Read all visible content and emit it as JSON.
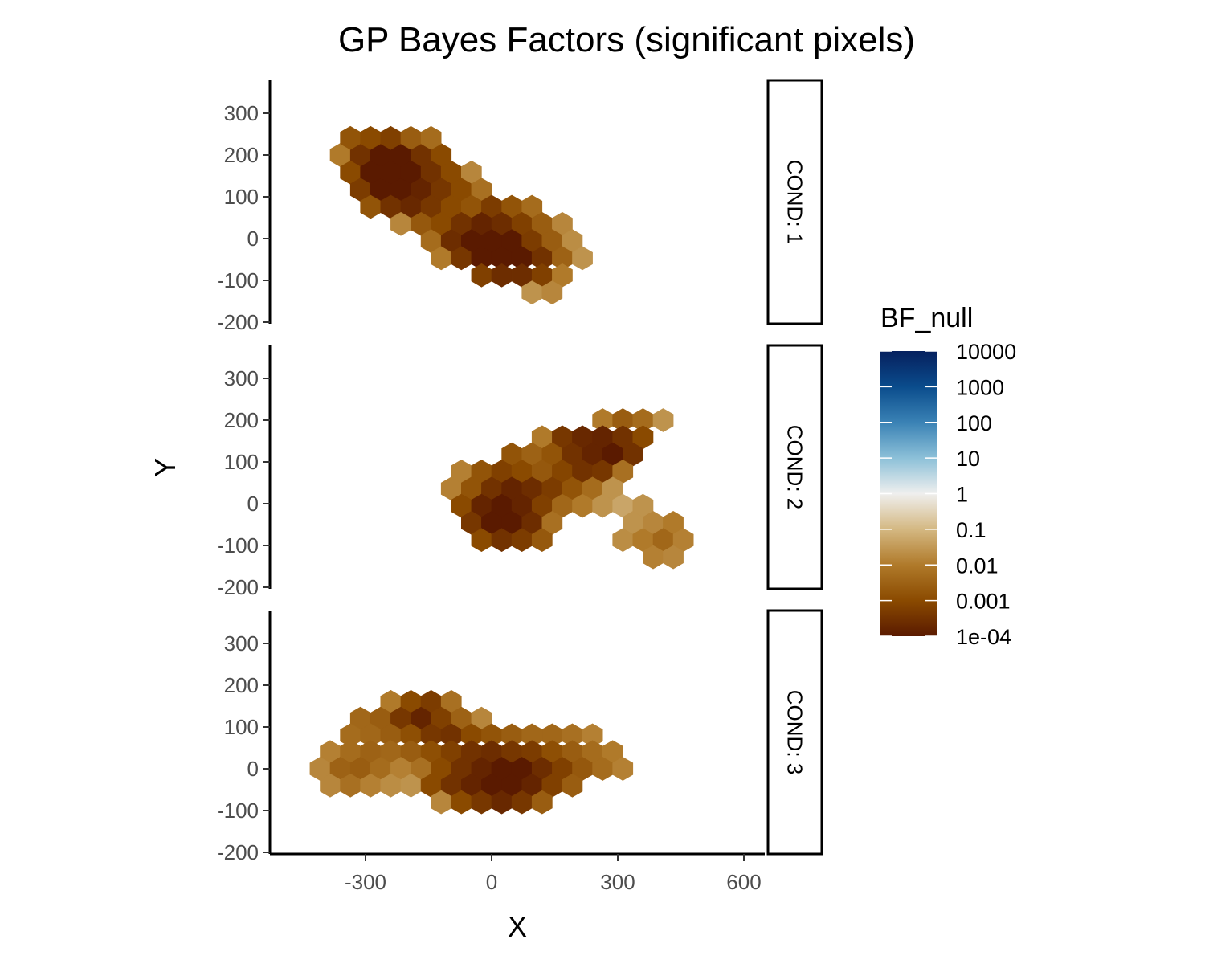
{
  "chart_data": {
    "type": "heatmap",
    "subtype": "hexbin, faceted by condition",
    "title": "GP Bayes Factors (significant pixels)",
    "xlabel": "X",
    "ylabel": "Y",
    "xlim": [
      -500,
      550
    ],
    "ylim": [
      -200,
      380
    ],
    "xticks": [
      -300,
      0,
      300,
      600
    ],
    "xtick_labels": [
      "-300",
      "0",
      "300",
      "600"
    ],
    "yticks": [
      -200,
      -100,
      0,
      100,
      200,
      300
    ],
    "ytick_labels": [
      "-200",
      "-100",
      "0",
      "100",
      "200",
      "300"
    ],
    "grid": false,
    "hex_spacing_x": 48,
    "legend": {
      "title": "BF_null",
      "position": "right",
      "scale": "log10",
      "breaks": [
        -4,
        -3,
        -2,
        -1,
        0,
        1,
        2,
        3,
        4
      ],
      "labels": [
        "1e-04",
        "0.001",
        "0.01",
        "0.1",
        "1",
        "10",
        "100",
        "1000",
        "10000"
      ],
      "colors": [
        "#5a1a00",
        "#8a4a00",
        "#b07a2a",
        "#d4b882",
        "#efefee",
        "#8cc0d8",
        "#3a82b5",
        "#0a4c8c",
        "#06205e"
      ]
    },
    "facets": [
      {
        "label": "COND: 1",
        "hexes": [
          [
            -360,
            200,
            -2.0
          ],
          [
            -312,
            200,
            -3.5
          ],
          [
            -264,
            200,
            -4.0
          ],
          [
            -216,
            200,
            -4.0
          ],
          [
            -168,
            200,
            -3.5
          ],
          [
            -120,
            200,
            -3.0
          ],
          [
            -336,
            241,
            -2.8
          ],
          [
            -288,
            241,
            -3.0
          ],
          [
            -240,
            241,
            -3.2
          ],
          [
            -192,
            241,
            -2.6
          ],
          [
            -144,
            241,
            -2.3
          ],
          [
            -336,
            158,
            -3.0
          ],
          [
            -288,
            158,
            -4.0
          ],
          [
            -240,
            158,
            -4.0
          ],
          [
            -192,
            158,
            -4.0
          ],
          [
            -144,
            158,
            -3.5
          ],
          [
            -96,
            158,
            -3.0
          ],
          [
            -48,
            158,
            -1.8
          ],
          [
            -312,
            117,
            -3.3
          ],
          [
            -264,
            117,
            -4.0
          ],
          [
            -216,
            117,
            -4.0
          ],
          [
            -168,
            117,
            -3.8
          ],
          [
            -120,
            117,
            -3.4
          ],
          [
            -72,
            117,
            -3.0
          ],
          [
            -24,
            117,
            -2.2
          ],
          [
            -288,
            76,
            -2.8
          ],
          [
            -240,
            76,
            -3.5
          ],
          [
            -192,
            76,
            -3.7
          ],
          [
            -144,
            76,
            -3.4
          ],
          [
            -96,
            76,
            -3.0
          ],
          [
            -48,
            76,
            -2.8
          ],
          [
            0,
            76,
            -3.3
          ],
          [
            48,
            76,
            -2.8
          ],
          [
            96,
            76,
            -2.3
          ],
          [
            -216,
            35,
            -1.8
          ],
          [
            -168,
            35,
            -2.7
          ],
          [
            -120,
            35,
            -3.0
          ],
          [
            -72,
            35,
            -3.5
          ],
          [
            -24,
            35,
            -3.8
          ],
          [
            24,
            35,
            -3.6
          ],
          [
            72,
            35,
            -3.2
          ],
          [
            120,
            35,
            -2.6
          ],
          [
            168,
            35,
            -1.8
          ],
          [
            -144,
            -6,
            -2.3
          ],
          [
            -96,
            -6,
            -3.6
          ],
          [
            -48,
            -6,
            -4.0
          ],
          [
            0,
            -6,
            -4.0
          ],
          [
            48,
            -6,
            -4.0
          ],
          [
            96,
            -6,
            -3.3
          ],
          [
            144,
            -6,
            -2.6
          ],
          [
            192,
            -6,
            -1.7
          ],
          [
            -120,
            -47,
            -2.0
          ],
          [
            -72,
            -47,
            -3.4
          ],
          [
            -24,
            -47,
            -4.0
          ],
          [
            24,
            -47,
            -4.0
          ],
          [
            72,
            -47,
            -4.0
          ],
          [
            120,
            -47,
            -3.5
          ],
          [
            168,
            -47,
            -2.5
          ],
          [
            216,
            -47,
            -1.6
          ],
          [
            -24,
            -88,
            -3.2
          ],
          [
            24,
            -88,
            -3.6
          ],
          [
            72,
            -88,
            -3.6
          ],
          [
            120,
            -88,
            -3.2
          ],
          [
            168,
            -88,
            -2.0
          ],
          [
            96,
            -129,
            -1.6
          ],
          [
            144,
            -129,
            -1.8
          ]
        ]
      },
      {
        "label": "COND: 2",
        "hexes": [
          [
            264,
            200,
            -2.0
          ],
          [
            312,
            200,
            -2.6
          ],
          [
            360,
            200,
            -2.3
          ],
          [
            408,
            200,
            -1.6
          ],
          [
            120,
            159,
            -2.0
          ],
          [
            168,
            159,
            -3.4
          ],
          [
            216,
            159,
            -3.7
          ],
          [
            264,
            159,
            -3.8
          ],
          [
            312,
            159,
            -3.5
          ],
          [
            360,
            159,
            -3.0
          ],
          [
            48,
            118,
            -2.8
          ],
          [
            96,
            118,
            -2.5
          ],
          [
            144,
            118,
            -2.8
          ],
          [
            192,
            118,
            -3.5
          ],
          [
            240,
            118,
            -3.8
          ],
          [
            288,
            118,
            -4.0
          ],
          [
            336,
            118,
            -3.5
          ],
          [
            -72,
            77,
            -1.9
          ],
          [
            -24,
            77,
            -2.8
          ],
          [
            24,
            77,
            -3.2
          ],
          [
            72,
            77,
            -3.0
          ],
          [
            120,
            77,
            -2.7
          ],
          [
            168,
            77,
            -3.1
          ],
          [
            216,
            77,
            -3.5
          ],
          [
            264,
            77,
            -3.4
          ],
          [
            312,
            77,
            -2.2
          ],
          [
            -96,
            36,
            -1.9
          ],
          [
            -48,
            36,
            -2.8
          ],
          [
            0,
            36,
            -3.5
          ],
          [
            48,
            36,
            -3.8
          ],
          [
            96,
            36,
            -3.6
          ],
          [
            144,
            36,
            -3.3
          ],
          [
            192,
            36,
            -2.8
          ],
          [
            240,
            36,
            -2.3
          ],
          [
            288,
            36,
            -1.6
          ],
          [
            -72,
            -5,
            -3.0
          ],
          [
            -24,
            -5,
            -3.8
          ],
          [
            24,
            -5,
            -4.0
          ],
          [
            72,
            -5,
            -3.8
          ],
          [
            120,
            -5,
            -3.2
          ],
          [
            168,
            -5,
            -2.4
          ],
          [
            216,
            -5,
            -2.0
          ],
          [
            264,
            -5,
            -1.6
          ],
          [
            312,
            -5,
            -1.3
          ],
          [
            360,
            -5,
            -1.6
          ],
          [
            -48,
            -46,
            -3.4
          ],
          [
            0,
            -46,
            -4.0
          ],
          [
            48,
            -46,
            -4.0
          ],
          [
            96,
            -46,
            -3.6
          ],
          [
            144,
            -46,
            -2.2
          ],
          [
            336,
            -46,
            -1.6
          ],
          [
            384,
            -46,
            -1.8
          ],
          [
            432,
            -46,
            -2.0
          ],
          [
            -24,
            -87,
            -3.0
          ],
          [
            24,
            -87,
            -3.5
          ],
          [
            72,
            -87,
            -3.3
          ],
          [
            120,
            -87,
            -2.7
          ],
          [
            312,
            -87,
            -1.7
          ],
          [
            360,
            -87,
            -2.0
          ],
          [
            408,
            -87,
            -2.4
          ],
          [
            456,
            -87,
            -1.9
          ],
          [
            384,
            -128,
            -1.9
          ],
          [
            432,
            -128,
            -1.8
          ]
        ]
      },
      {
        "label": "COND: 3",
        "hexes": [
          [
            -240,
            160,
            -2.0
          ],
          [
            -192,
            160,
            -3.0
          ],
          [
            -144,
            160,
            -3.3
          ],
          [
            -96,
            160,
            -2.2
          ],
          [
            -312,
            120,
            -2.4
          ],
          [
            -264,
            120,
            -2.6
          ],
          [
            -216,
            120,
            -3.4
          ],
          [
            -168,
            120,
            -3.8
          ],
          [
            -120,
            120,
            -3.2
          ],
          [
            -72,
            120,
            -2.5
          ],
          [
            -24,
            120,
            -1.8
          ],
          [
            -336,
            80,
            -2.3
          ],
          [
            -288,
            80,
            -2.4
          ],
          [
            -240,
            80,
            -2.6
          ],
          [
            -192,
            80,
            -2.9
          ],
          [
            -144,
            80,
            -3.4
          ],
          [
            -96,
            80,
            -3.5
          ],
          [
            -48,
            80,
            -3.0
          ],
          [
            0,
            80,
            -2.8
          ],
          [
            48,
            80,
            -2.6
          ],
          [
            96,
            80,
            -2.4
          ],
          [
            144,
            80,
            -2.4
          ],
          [
            192,
            80,
            -2.2
          ],
          [
            240,
            80,
            -1.9
          ],
          [
            -384,
            40,
            -1.9
          ],
          [
            -336,
            40,
            -2.3
          ],
          [
            -288,
            40,
            -2.5
          ],
          [
            -240,
            40,
            -2.4
          ],
          [
            -192,
            40,
            -2.6
          ],
          [
            -144,
            40,
            -2.9
          ],
          [
            -96,
            40,
            -3.2
          ],
          [
            -48,
            40,
            -3.5
          ],
          [
            0,
            40,
            -3.6
          ],
          [
            48,
            40,
            -3.4
          ],
          [
            96,
            40,
            -3.3
          ],
          [
            144,
            40,
            -2.9
          ],
          [
            192,
            40,
            -2.6
          ],
          [
            240,
            40,
            -2.3
          ],
          [
            288,
            40,
            -2.0
          ],
          [
            -408,
            0,
            -1.8
          ],
          [
            -360,
            0,
            -2.5
          ],
          [
            -312,
            0,
            -2.6
          ],
          [
            -264,
            0,
            -2.3
          ],
          [
            -216,
            0,
            -1.9
          ],
          [
            -168,
            0,
            -2.2
          ],
          [
            -120,
            0,
            -3.0
          ],
          [
            -72,
            0,
            -3.5
          ],
          [
            -24,
            0,
            -3.8
          ],
          [
            24,
            0,
            -4.0
          ],
          [
            72,
            0,
            -4.0
          ],
          [
            120,
            0,
            -3.6
          ],
          [
            168,
            0,
            -3.2
          ],
          [
            216,
            0,
            -2.7
          ],
          [
            264,
            0,
            -2.3
          ],
          [
            312,
            0,
            -1.9
          ],
          [
            -384,
            -40,
            -1.8
          ],
          [
            -336,
            -40,
            -2.2
          ],
          [
            -288,
            -40,
            -1.9
          ],
          [
            -240,
            -40,
            -1.7
          ],
          [
            -192,
            -40,
            -1.6
          ],
          [
            -144,
            -40,
            -3.0
          ],
          [
            -96,
            -40,
            -3.5
          ],
          [
            -48,
            -40,
            -3.8
          ],
          [
            0,
            -40,
            -4.0
          ],
          [
            48,
            -40,
            -4.0
          ],
          [
            96,
            -40,
            -3.8
          ],
          [
            144,
            -40,
            -3.2
          ],
          [
            192,
            -40,
            -2.6
          ],
          [
            -120,
            -80,
            -1.8
          ],
          [
            -72,
            -80,
            -3.0
          ],
          [
            -24,
            -80,
            -3.4
          ],
          [
            24,
            -80,
            -3.7
          ],
          [
            72,
            -80,
            -3.4
          ],
          [
            120,
            -80,
            -2.6
          ]
        ]
      }
    ]
  }
}
